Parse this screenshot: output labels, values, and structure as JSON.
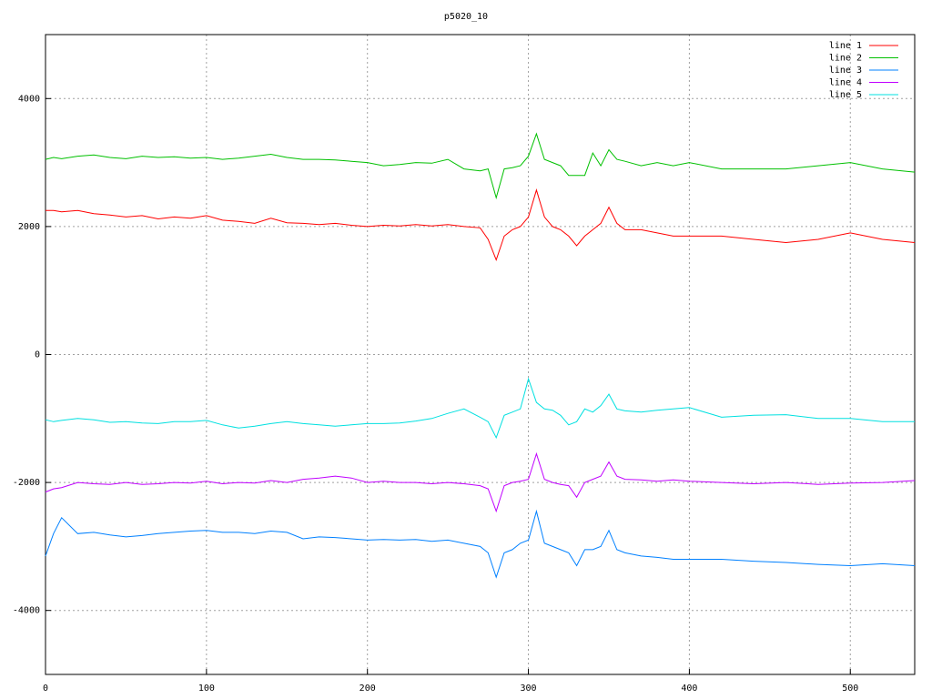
{
  "chart_data": {
    "type": "line",
    "title": "p5020_10",
    "x": [
      0,
      5,
      10,
      20,
      30,
      40,
      50,
      60,
      70,
      80,
      90,
      100,
      110,
      120,
      130,
      140,
      150,
      160,
      170,
      180,
      190,
      200,
      210,
      220,
      230,
      240,
      250,
      260,
      270,
      275,
      280,
      285,
      290,
      295,
      300,
      305,
      310,
      315,
      320,
      325,
      330,
      335,
      340,
      345,
      350,
      355,
      360,
      370,
      380,
      390,
      400,
      420,
      440,
      460,
      480,
      500,
      520,
      540
    ],
    "series": [
      {
        "name": "line 1",
        "color": "#ff0000",
        "values": [
          2250,
          2250,
          2230,
          2250,
          2200,
          2180,
          2150,
          2170,
          2120,
          2150,
          2130,
          2170,
          2100,
          2080,
          2050,
          2130,
          2060,
          2050,
          2030,
          2050,
          2020,
          2000,
          2020,
          2010,
          2030,
          2010,
          2030,
          2000,
          1980,
          1800,
          1480,
          1850,
          1950,
          2000,
          2150,
          2570,
          2150,
          2000,
          1950,
          1850,
          1700,
          1850,
          1950,
          2050,
          2300,
          2050,
          1950,
          1950,
          1900,
          1850,
          1850,
          1850,
          1800,
          1750,
          1800,
          1900,
          1800,
          1750
        ]
      },
      {
        "name": "line 2",
        "color": "#00c000",
        "values": [
          3050,
          3080,
          3060,
          3100,
          3120,
          3080,
          3060,
          3100,
          3080,
          3090,
          3070,
          3080,
          3050,
          3070,
          3100,
          3130,
          3080,
          3050,
          3050,
          3040,
          3020,
          3000,
          2950,
          2970,
          3000,
          2990,
          3050,
          2900,
          2870,
          2900,
          2450,
          2900,
          2920,
          2950,
          3100,
          3450,
          3050,
          3000,
          2950,
          2800,
          2800,
          2800,
          3150,
          2950,
          3200,
          3050,
          3020,
          2950,
          3000,
          2950,
          3000,
          2900,
          2900,
          2900,
          2950,
          3000,
          2900,
          2850
        ]
      },
      {
        "name": "line 3",
        "color": "#0080ff",
        "values": [
          -3150,
          -2800,
          -2550,
          -2800,
          -2780,
          -2820,
          -2850,
          -2830,
          -2800,
          -2780,
          -2760,
          -2750,
          -2780,
          -2780,
          -2800,
          -2760,
          -2780,
          -2880,
          -2850,
          -2860,
          -2880,
          -2900,
          -2890,
          -2900,
          -2890,
          -2920,
          -2900,
          -2950,
          -3000,
          -3100,
          -3480,
          -3100,
          -3050,
          -2950,
          -2900,
          -2450,
          -2950,
          -3000,
          -3050,
          -3100,
          -3300,
          -3050,
          -3050,
          -3000,
          -2750,
          -3050,
          -3100,
          -3150,
          -3170,
          -3200,
          -3200,
          -3200,
          -3230,
          -3250,
          -3280,
          -3300,
          -3270,
          -3300
        ]
      },
      {
        "name": "line 4",
        "color": "#c000ff",
        "values": [
          -2150,
          -2100,
          -2080,
          -2000,
          -2020,
          -2030,
          -2000,
          -2030,
          -2020,
          -2000,
          -2010,
          -1980,
          -2020,
          -2000,
          -2010,
          -1970,
          -2000,
          -1950,
          -1930,
          -1900,
          -1930,
          -2000,
          -1980,
          -2000,
          -2000,
          -2020,
          -2000,
          -2020,
          -2050,
          -2100,
          -2450,
          -2050,
          -2000,
          -1980,
          -1950,
          -1550,
          -1950,
          -2000,
          -2030,
          -2050,
          -2230,
          -2000,
          -1950,
          -1900,
          -1680,
          -1900,
          -1950,
          -1960,
          -1980,
          -1960,
          -1980,
          -2000,
          -2020,
          -2000,
          -2030,
          -2010,
          -2000,
          -1970
        ]
      },
      {
        "name": "line 5",
        "color": "#00e0e0",
        "values": [
          -1020,
          -1050,
          -1030,
          -1000,
          -1020,
          -1060,
          -1050,
          -1070,
          -1080,
          -1050,
          -1050,
          -1030,
          -1100,
          -1150,
          -1120,
          -1080,
          -1050,
          -1080,
          -1100,
          -1120,
          -1100,
          -1080,
          -1080,
          -1070,
          -1040,
          -1000,
          -920,
          -850,
          -980,
          -1050,
          -1300,
          -950,
          -900,
          -850,
          -380,
          -750,
          -850,
          -870,
          -950,
          -1100,
          -1050,
          -850,
          -900,
          -800,
          -620,
          -850,
          -880,
          -900,
          -870,
          -850,
          -830,
          -980,
          -950,
          -940,
          -1000,
          -1000,
          -1050,
          -1050
        ]
      }
    ],
    "xlim": [
      0,
      540
    ],
    "ylim": [
      -5000,
      5000
    ],
    "xticks": [
      0,
      100,
      200,
      300,
      400,
      500
    ],
    "yticks": [
      -4000,
      -2000,
      0,
      2000,
      4000
    ],
    "grid": true,
    "legend": "top-right"
  }
}
